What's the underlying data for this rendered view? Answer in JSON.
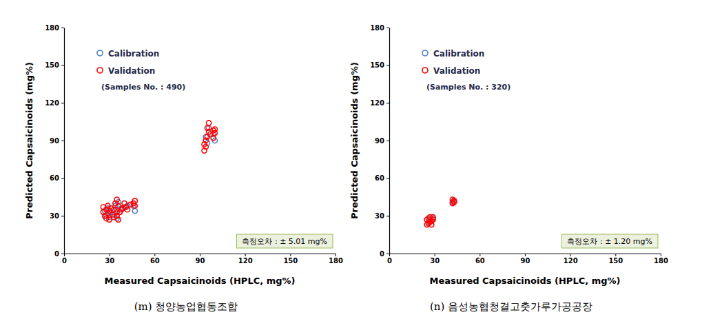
{
  "chart_data": [
    {
      "type": "scatter",
      "title": "(m) 청양농업협동조합",
      "x_label": "Measured Capsaicinoids (HPLC, mg%)",
      "y_label": "Predicted Capsaicinoids (mg%)",
      "annotations": [
        "(Samples No. : 490)",
        "측정오차 : ± 5.01 mg%"
      ],
      "legend": "top-left",
      "xlim": [
        0,
        180
      ],
      "ylim": [
        0,
        180
      ],
      "xticks": [
        0,
        30,
        60,
        90,
        120,
        150,
        180
      ],
      "yticks": [
        0,
        30,
        60,
        90,
        120,
        150,
        180
      ],
      "series": [
        {
          "name": "Calibration",
          "color": "#4f81bd",
          "marker": "circle",
          "x": [
            27,
            28,
            29,
            30,
            31,
            33,
            34,
            35,
            35,
            36,
            37,
            38,
            40,
            42,
            46,
            47,
            94,
            95,
            96,
            99,
            100
          ],
          "values": [
            34,
            30,
            36,
            29,
            33,
            31,
            38,
            35,
            28,
            41,
            33,
            36,
            37,
            38,
            38,
            34,
            93,
            88,
            100,
            95,
            90
          ]
        },
        {
          "name": "Validation",
          "color": "#ff0000",
          "marker": "circle",
          "x": [
            26,
            26,
            27,
            28,
            28,
            29,
            29,
            30,
            30,
            31,
            32,
            33,
            33,
            34,
            35,
            35,
            35,
            36,
            36,
            37,
            38,
            39,
            40,
            41,
            42,
            44,
            46,
            47,
            47,
            93,
            93,
            94,
            94,
            95,
            95,
            96,
            96,
            97,
            99,
            99,
            100,
            100
          ],
          "values": [
            33,
            37,
            30,
            35,
            28,
            32,
            38,
            27,
            34,
            36,
            31,
            29,
            35,
            40,
            43,
            30,
            33,
            27,
            38,
            33,
            35,
            36,
            40,
            37,
            35,
            39,
            40,
            38,
            42,
            82,
            87,
            90,
            85,
            93,
            100,
            104,
            97,
            95,
            98,
            92,
            99,
            96
          ]
        }
      ]
    },
    {
      "type": "scatter",
      "title": "(n) 음성농협청결고춧가루가공공장",
      "x_label": "Measured Capsaicinoids (HPLC, mg%)",
      "y_label": "Predicted Capsaicinoids (mg%)",
      "annotations": [
        "(Samples No. : 320)",
        "측정오차 : ± 1.20 mg%"
      ],
      "legend": "top-left",
      "xlim": [
        0,
        180
      ],
      "ylim": [
        0,
        180
      ],
      "xticks": [
        0,
        30,
        60,
        90,
        120,
        150,
        180
      ],
      "yticks": [
        0,
        30,
        60,
        90,
        120,
        150,
        180
      ],
      "series": [
        {
          "name": "Calibration",
          "color": "#4f81bd",
          "marker": "circle",
          "x": [
            26,
            27,
            28,
            29,
            42,
            43
          ],
          "values": [
            25,
            27,
            26,
            28,
            41,
            42
          ]
        },
        {
          "name": "Validation",
          "color": "#ff0000",
          "marker": "circle",
          "x": [
            25,
            25,
            26,
            26,
            27,
            27,
            28,
            28,
            29,
            29,
            42,
            42,
            43,
            43
          ],
          "values": [
            23,
            27,
            24,
            28,
            25,
            29,
            26,
            23,
            27,
            29,
            40,
            43,
            41,
            42
          ]
        }
      ]
    }
  ]
}
